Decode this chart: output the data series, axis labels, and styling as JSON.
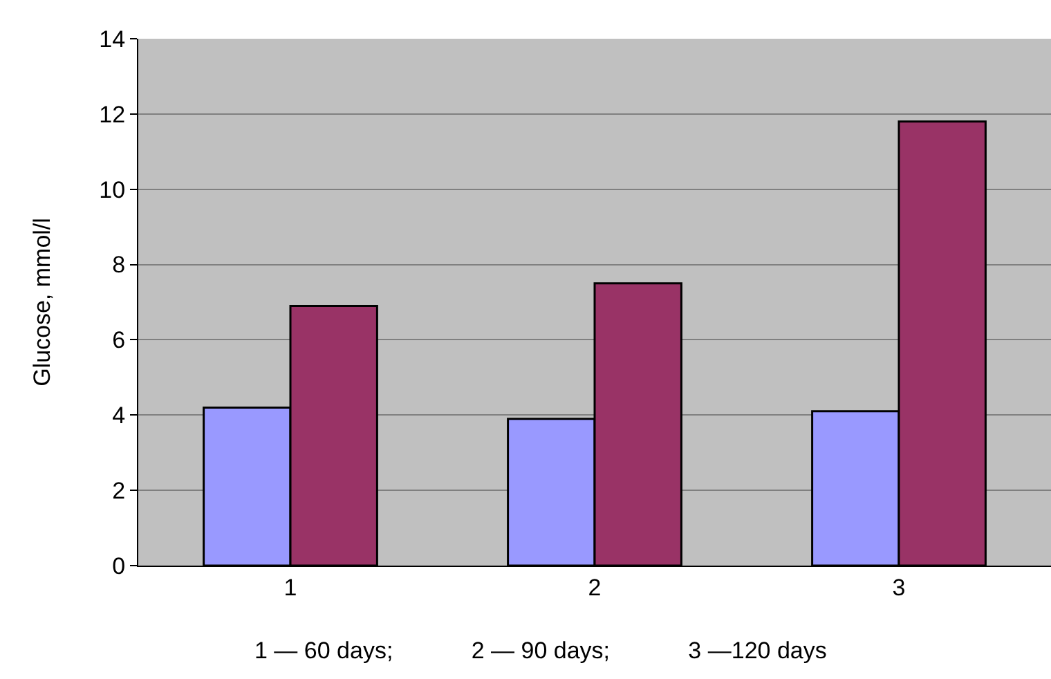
{
  "chart_data": {
    "type": "bar",
    "ylabel": "Glucose, mmol/l",
    "categories": [
      "1",
      "2",
      "3"
    ],
    "series": [
      {
        "color": "#9999ff",
        "values": [
          4.2,
          3.9,
          4.1
        ]
      },
      {
        "color": "#993366",
        "values": [
          6.9,
          7.5,
          11.8
        ]
      }
    ],
    "ylim": [
      0,
      14
    ],
    "yticks": [
      0,
      2,
      4,
      6,
      8,
      10,
      12,
      14
    ],
    "grid": "y",
    "annotations": [
      "1 — 60 days;            2 — 90 days;            3 —120 days"
    ]
  }
}
